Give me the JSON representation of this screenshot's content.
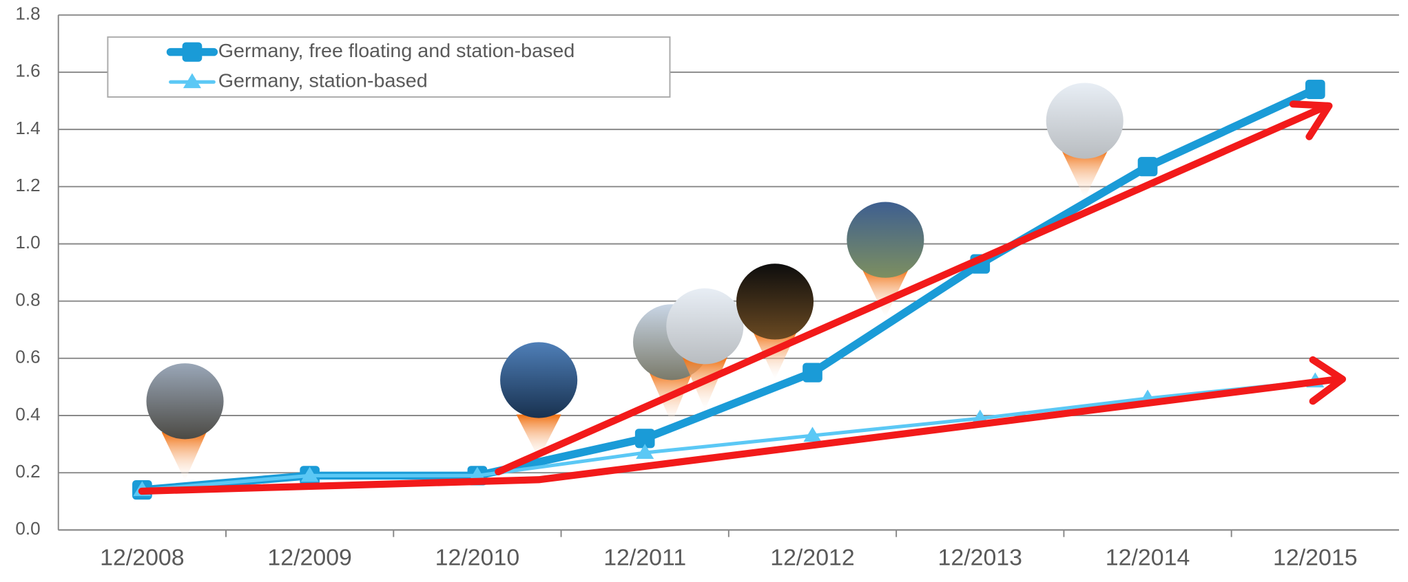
{
  "chart_data": {
    "type": "line",
    "categories": [
      "12/2008",
      "12/2009",
      "12/2010",
      "12/2011",
      "12/2012",
      "12/2013",
      "12/2014",
      "12/2015"
    ],
    "series": [
      {
        "name": "Germany, free floating and station-based",
        "color": "#1a9bd7",
        "marker": "square",
        "values": [
          0.14,
          0.19,
          0.19,
          0.32,
          0.55,
          0.93,
          1.27,
          1.54
        ]
      },
      {
        "name": "Germany, station-based",
        "color": "#5bc8f5",
        "marker": "triangle",
        "values": [
          0.14,
          0.19,
          0.19,
          0.27,
          0.33,
          0.39,
          0.46,
          0.52
        ]
      }
    ],
    "ylim": [
      0,
      1.8
    ],
    "yticks": [
      {
        "value": 0,
        "label": "0.0"
      },
      0.2,
      0.4,
      0.6,
      0.8,
      {
        "value": 1,
        "label": "1.0"
      },
      1.2,
      1.4,
      1.6,
      1.8
    ],
    "grid": true
  }
}
